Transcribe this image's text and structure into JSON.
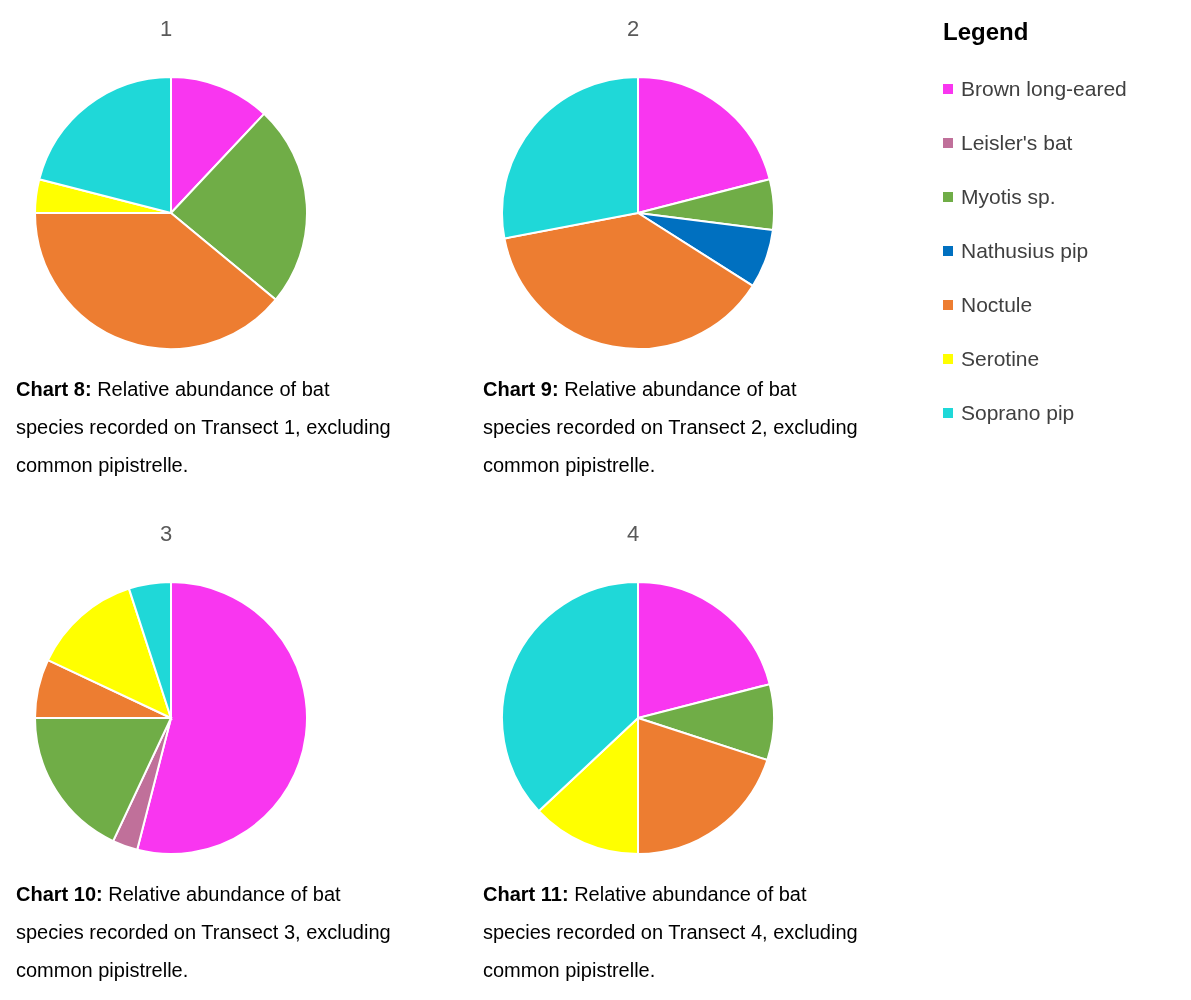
{
  "chart_data": [
    {
      "type": "pie",
      "title": "1",
      "categories": [
        "Brown long-eared",
        "Leisler's bat",
        "Myotis sp.",
        "Nathusius pip",
        "Noctule",
        "Serotine",
        "Soprano pip"
      ],
      "values": [
        12,
        0,
        24,
        0,
        39,
        4,
        21
      ],
      "colors": [
        "#f936f0",
        "#c0709a",
        "#70ad47",
        "#0070c0",
        "#ed7d31",
        "#ffff00",
        "#1fd8d8"
      ],
      "legend": "right",
      "legend_title": "Legend",
      "annotations": [
        "Chart 8:",
        "Relative abundance of bat species recorded on Transect 1, excluding common pipistrelle."
      ]
    },
    {
      "type": "pie",
      "title": "2",
      "categories": [
        null,
        null,
        null,
        null,
        null,
        null,
        null
      ],
      "values": [
        21,
        0,
        6,
        7,
        38,
        0,
        28
      ],
      "colors": [
        "#f936f0",
        "#c0709a",
        "#70ad47",
        "#0070c0",
        "#ed7d31",
        "#ffff00",
        "#1fd8d8"
      ],
      "annotations": [
        "Chart 9:",
        "Relative abundance of bat species recorded on Transect 2, excluding common pipistrelle."
      ]
    },
    {
      "type": "pie",
      "title": "3",
      "categories": [
        null,
        null,
        null,
        null,
        null,
        null,
        null
      ],
      "values": [
        54,
        3,
        18,
        0,
        7,
        13,
        5
      ],
      "colors": [
        "#f936f0",
        "#c0709a",
        "#70ad47",
        "#0070c0",
        "#ed7d31",
        "#ffff00",
        "#1fd8d8"
      ],
      "annotations": [
        "Chart 10:",
        "Relative abundance of bat species recorded on Transect 3, excluding common pipistrelle."
      ]
    },
    {
      "type": "pie",
      "title": "4",
      "categories": [
        null,
        null,
        null,
        null,
        null,
        null,
        null
      ],
      "values": [
        21,
        0,
        9,
        0,
        20,
        13,
        37
      ],
      "colors": [
        "#f936f0",
        "#c0709a",
        "#70ad47",
        "#0070c0",
        "#ed7d31",
        "#ffff00",
        "#1fd8d8"
      ],
      "annotations": [
        "Chart 11:",
        "Relative abundance of bat species recorded on Transect 4, excluding common pipistrelle."
      ]
    }
  ]
}
